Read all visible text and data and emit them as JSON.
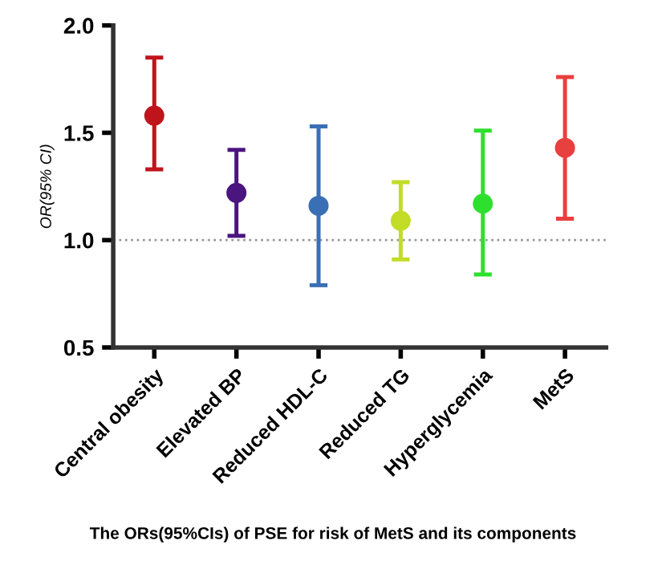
{
  "chart_data": {
    "type": "scatter",
    "ylabel": "OR(95% CI)",
    "categories": [
      "Central obesity",
      "Elevated BP",
      "Reduced HDL-C",
      "Reduced TG",
      "Hyperglycemia",
      "MetS"
    ],
    "values": [
      1.58,
      1.22,
      1.16,
      1.09,
      1.17,
      1.43
    ],
    "errors": [
      [
        1.33,
        1.85
      ],
      [
        1.02,
        1.42
      ],
      [
        0.79,
        1.53
      ],
      [
        0.91,
        1.27
      ],
      [
        0.84,
        1.51
      ],
      [
        1.1,
        1.76
      ]
    ],
    "colors": [
      "#c0141c",
      "#4b1580",
      "#3a6fb5",
      "#c2dc28",
      "#2ee02e",
      "#e8403f"
    ],
    "ylim": [
      0.5,
      2.0
    ],
    "yticks": [
      {
        "value": 0.5,
        "label": "0.5"
      },
      {
        "value": 1.0,
        "label": "1.0"
      },
      {
        "value": 1.5,
        "label": "1.5"
      },
      {
        "value": 2.0,
        "label": "2.0"
      }
    ],
    "ref_lines": [
      {
        "axis": "y",
        "value": 1.0,
        "color": "#999999",
        "line_style": "dotted"
      }
    ],
    "marker": "circle",
    "grid": false,
    "annotations": [
      "The ORs(95%CIs) of PSE for risk of MetS and its components"
    ]
  }
}
